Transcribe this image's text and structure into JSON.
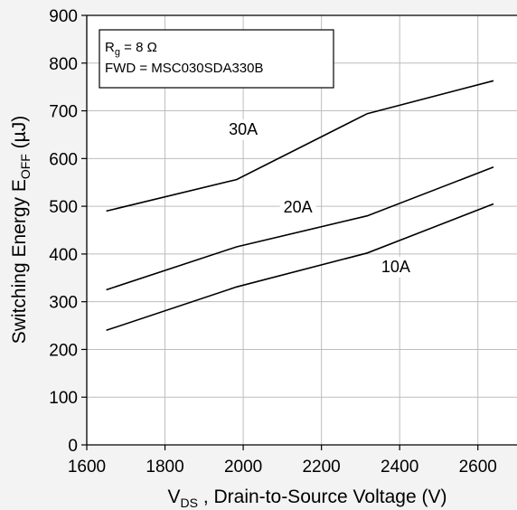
{
  "chart_data": {
    "type": "line",
    "xlabel_main": "V",
    "xlabel_sub": "DS",
    "xlabel_rest": " , Drain-to-Source Voltage (V)",
    "ylabel_main": "Switching Energy E",
    "ylabel_sub": "OFF",
    "ylabel_rest": " (µJ)",
    "xlim": [
      1600,
      2700
    ],
    "ylim": [
      0,
      900
    ],
    "x_ticks": [
      1600,
      1800,
      2000,
      2200,
      2400,
      2600
    ],
    "y_ticks": [
      0,
      100,
      200,
      300,
      400,
      500,
      600,
      700,
      800,
      900
    ],
    "grid": true,
    "legend": {
      "position": "top-left",
      "rg_main": "R",
      "rg_sub": "g",
      "rg_rest": " = 8 Ω",
      "fwd": "FWD = MSC030SDA330B"
    },
    "series": [
      {
        "name": "30A",
        "x": [
          1650,
          1983,
          2317,
          2640
        ],
        "values": [
          490,
          556,
          694,
          763
        ]
      },
      {
        "name": "20A",
        "x": [
          1650,
          1983,
          2317,
          2640
        ],
        "values": [
          325,
          415,
          480,
          582
        ]
      },
      {
        "name": "10A",
        "x": [
          1650,
          1983,
          2317,
          2640
        ],
        "values": [
          240,
          331,
          402,
          505
        ]
      }
    ],
    "annotations": [
      {
        "series": "30A",
        "text": "30A",
        "x": 2000,
        "y": 650
      },
      {
        "series": "20A",
        "text": "20A",
        "x": 2140,
        "y": 487
      },
      {
        "series": "10A",
        "text": "10A",
        "x": 2390,
        "y": 362
      }
    ]
  }
}
